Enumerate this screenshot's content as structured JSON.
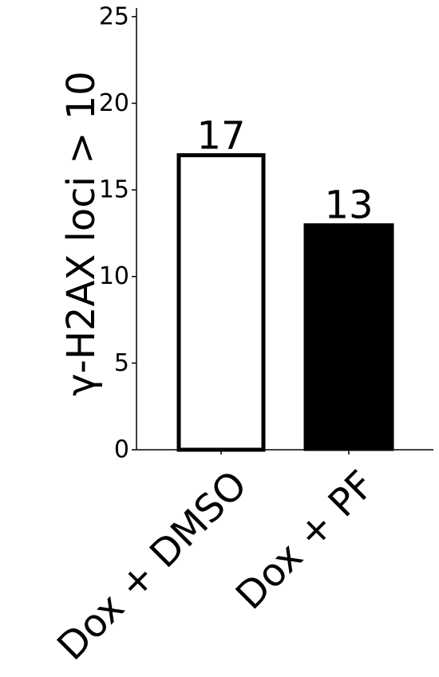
{
  "chart_data": {
    "type": "bar",
    "title": "",
    "xlabel": "",
    "ylabel": "γ-H2AX loci > 10",
    "ylim": [
      0,
      25.5
    ],
    "yticks": [
      0,
      5,
      10,
      15,
      20,
      25
    ],
    "categories": [
      "Dox + DMSO",
      "Dox + PF"
    ],
    "values": [
      17,
      13
    ],
    "data_labels": [
      "17",
      "13"
    ],
    "bar_fills": [
      "#ffffff",
      "#000000"
    ],
    "bar_edge": "#000000",
    "grid": false,
    "legend": "none"
  }
}
